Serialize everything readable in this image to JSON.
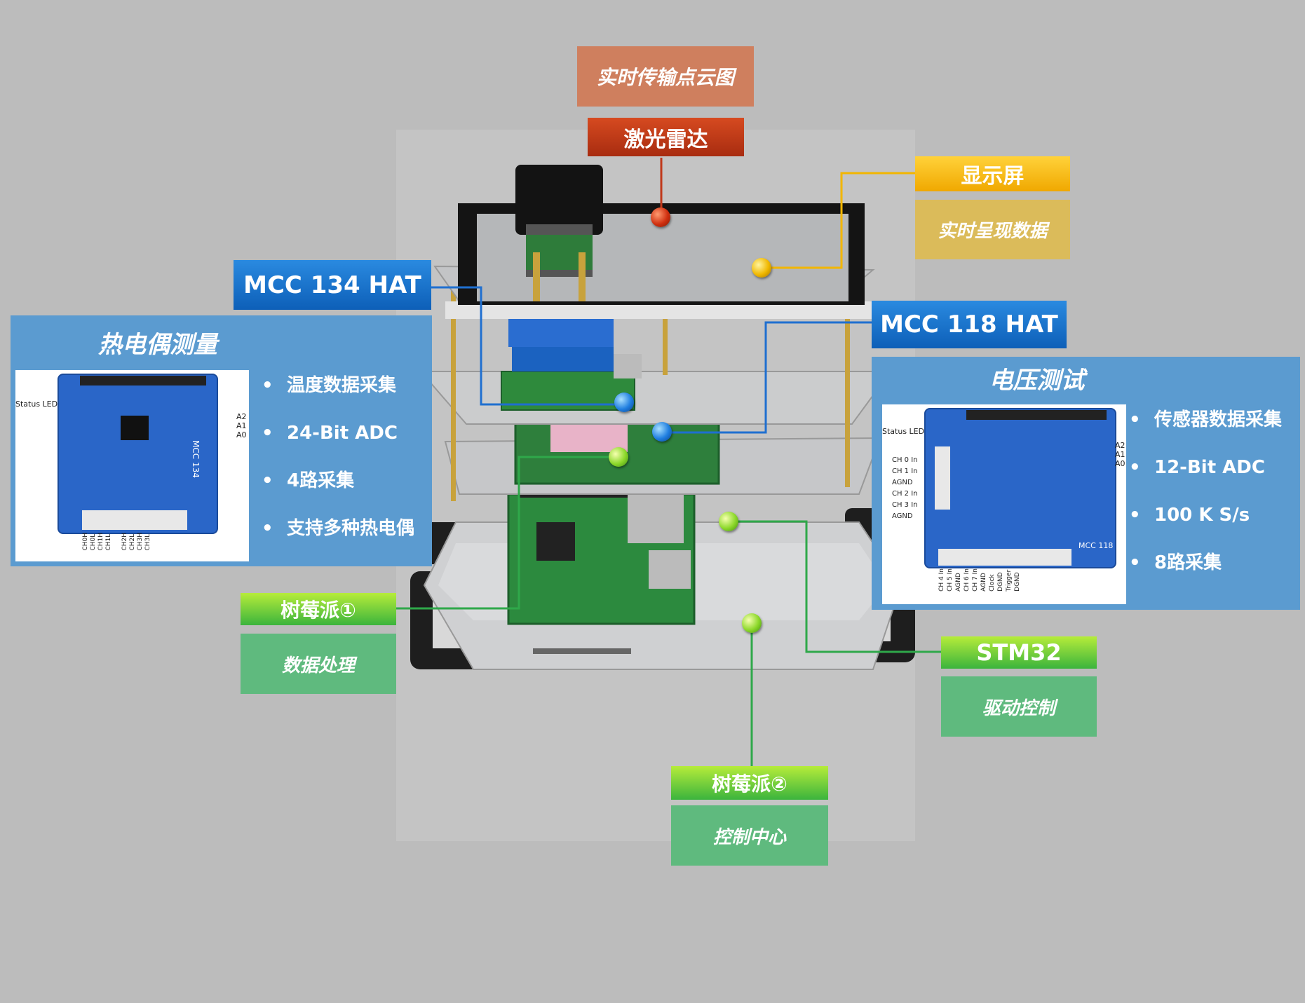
{
  "lidar": {
    "top": "实时传输点云图",
    "label": "激光雷达",
    "color": "#c0391b"
  },
  "display": {
    "label": "显示屏",
    "sub": "实时呈现数据"
  },
  "mcc134": {
    "label": "MCC 134 HAT",
    "panel_title": "热电偶测量",
    "board": {
      "status": "Status LED",
      "addr": [
        "A2",
        "A1",
        "A0"
      ],
      "model": "MCC 134",
      "channels": [
        "CH0H",
        "CH0L",
        "CH1H",
        "CH1L",
        "CH2H",
        "CH2L",
        "CH3H",
        "CH3L"
      ]
    },
    "features": [
      "温度数据采集",
      "24-Bit ADC",
      "4路采集",
      "支持多种热电偶"
    ]
  },
  "mcc118": {
    "label": "MCC 118 HAT",
    "panel_title": "电压测试",
    "board": {
      "status": "Status LED",
      "addr": [
        "A2",
        "A1",
        "A0"
      ],
      "model": "MCC 118",
      "inputs": [
        "CH 0 In",
        "CH 1 In",
        "AGND",
        "CH 2 In",
        "CH 3 In",
        "AGND"
      ],
      "bottom": [
        "CH 4 In",
        "CH 5 In",
        "AGND",
        "CH 6 In",
        "CH 7 In",
        "AGND",
        "Clock",
        "DGND",
        "Trigger",
        "DGND"
      ]
    },
    "features": [
      "传感器数据采集",
      "12-Bit ADC",
      "100 K S/s",
      "8路采集"
    ]
  },
  "pi1": {
    "label": "树莓派①",
    "sub": "数据处理"
  },
  "stm32": {
    "label": "STM32",
    "sub": "驱动控制"
  },
  "pi2": {
    "label": "树莓派②",
    "sub": "控制中心"
  }
}
